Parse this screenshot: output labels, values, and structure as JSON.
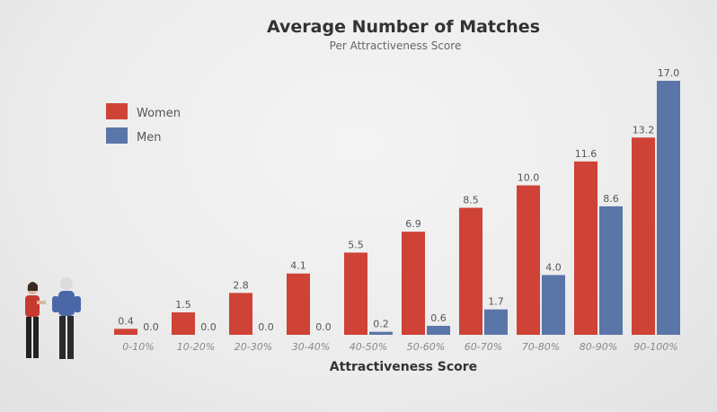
{
  "chart_data": {
    "type": "bar",
    "title": "Average Number of Matches",
    "subtitle": "Per Attractiveness Score",
    "xlabel": "Attractiveness Score",
    "ylabel": "",
    "categories": [
      "0-10%",
      "10-20%",
      "20-30%",
      "30-40%",
      "40-50%",
      "50-60%",
      "60-70%",
      "70-80%",
      "80-90%",
      "90-100%"
    ],
    "series": [
      {
        "name": "Women",
        "color": "#cf4236",
        "values": [
          0.4,
          1.5,
          2.8,
          4.1,
          5.5,
          6.9,
          8.5,
          10.0,
          11.6,
          13.2
        ]
      },
      {
        "name": "Men",
        "color": "#5a75a8",
        "values": [
          0.0,
          0.0,
          0.0,
          0.0,
          0.2,
          0.6,
          1.7,
          4.0,
          8.6,
          17.0
        ]
      }
    ],
    "value_labels": [
      [
        "0.4",
        "1.5",
        "2.8",
        "4.1",
        "5.5",
        "6.9",
        "8.5",
        "10.0",
        "11.6",
        "13.2"
      ],
      [
        "0.0",
        "0.0",
        "0.0",
        "0.0",
        "0.2",
        "0.6",
        "1.7",
        "4.0",
        "8.6",
        "17.0"
      ]
    ],
    "ylim": [
      0,
      17
    ],
    "grid": false,
    "legend_position": "top-left"
  }
}
